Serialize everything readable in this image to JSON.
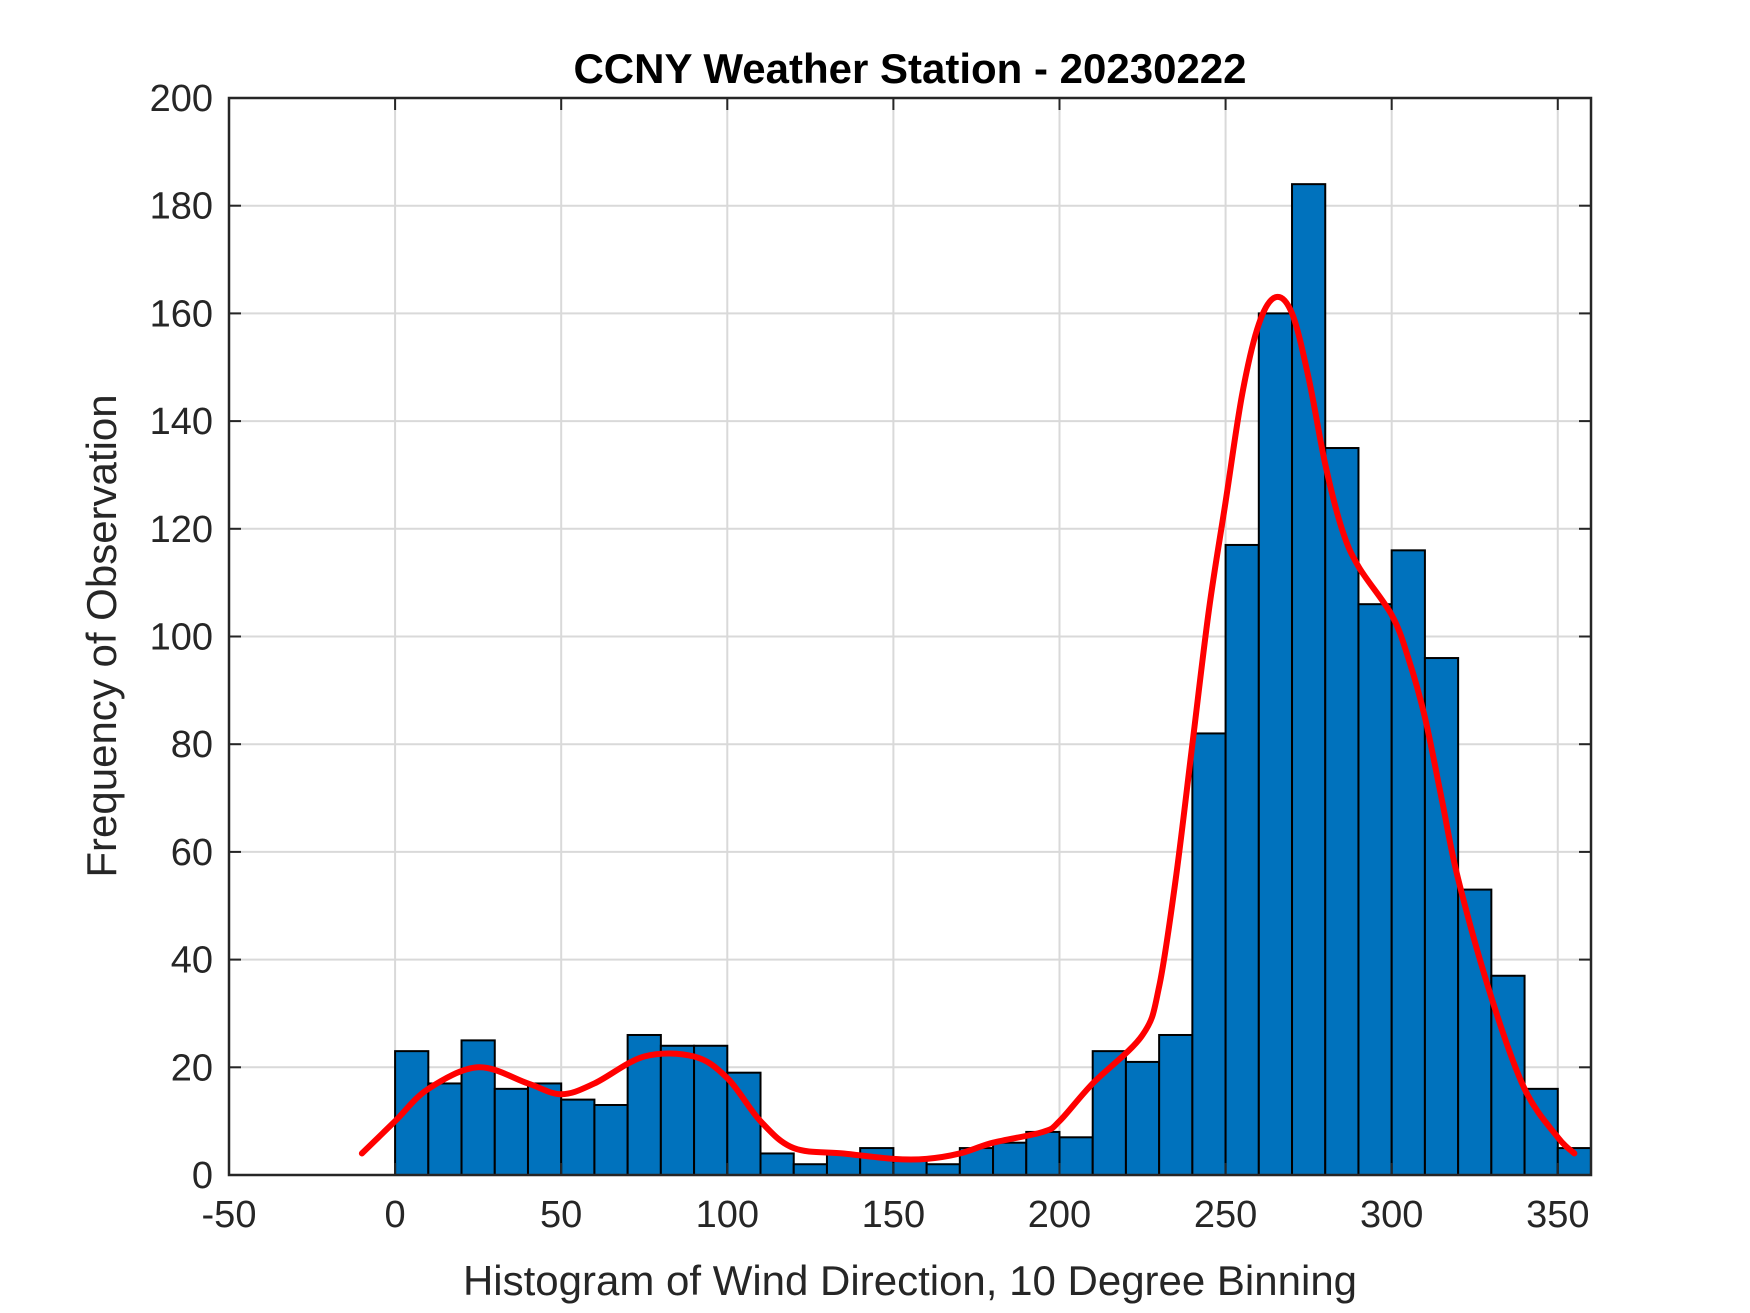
{
  "chart_data": {
    "type": "bar",
    "title": "CCNY Weather Station - 20230222",
    "xlabel": "Histogram of Wind Direction, 10 Degree Binning",
    "ylabel": "Frequency of Observation",
    "xlim": [
      -50,
      360
    ],
    "ylim": [
      0,
      200
    ],
    "xticks": [
      -50,
      0,
      50,
      100,
      150,
      200,
      250,
      300,
      350
    ],
    "xtick_labels": [
      "-50",
      "0",
      "50",
      "100",
      "150",
      "200",
      "250",
      "300",
      "350"
    ],
    "yticks": [
      0,
      20,
      40,
      60,
      80,
      100,
      120,
      140,
      160,
      180,
      200
    ],
    "ytick_labels": [
      "0",
      "20",
      "40",
      "60",
      "80",
      "100",
      "120",
      "140",
      "160",
      "180",
      "200"
    ],
    "grid": true,
    "bin_width": 10,
    "bin_edges_start": [
      0,
      10,
      20,
      30,
      40,
      50,
      60,
      70,
      80,
      90,
      100,
      110,
      120,
      130,
      140,
      150,
      160,
      170,
      180,
      190,
      200,
      210,
      220,
      230,
      240,
      250,
      260,
      270,
      280,
      290,
      300,
      310,
      320,
      330,
      340,
      350
    ],
    "values": [
      23,
      17,
      25,
      16,
      17,
      14,
      13,
      26,
      24,
      24,
      19,
      4,
      2,
      4,
      5,
      3,
      2,
      5,
      6,
      8,
      7,
      23,
      21,
      26,
      82,
      117,
      160,
      184,
      135,
      106,
      116,
      96,
      53,
      37,
      16,
      5
    ],
    "bar_color": "#0072BD",
    "series": [
      {
        "type": "line",
        "color": "#FF0000",
        "x": [
          -10,
          0,
          10,
          25,
          40,
          50,
          60,
          75,
          90,
          100,
          110,
          120,
          135,
          150,
          160,
          170,
          180,
          195,
          200,
          210,
          225,
          230,
          235,
          240,
          245,
          250,
          255,
          260,
          265,
          270,
          275,
          280,
          285,
          290,
          300,
          305,
          310,
          315,
          320,
          330,
          340,
          350,
          355
        ],
        "y": [
          4,
          10,
          16,
          20,
          17,
          15,
          17,
          22,
          22,
          18,
          10,
          5,
          4,
          3,
          3,
          4,
          6,
          8,
          10,
          17,
          26,
          35,
          55,
          80,
          105,
          125,
          145,
          158,
          163,
          160,
          148,
          132,
          120,
          113,
          104,
          96,
          85,
          70,
          55,
          33,
          16,
          7,
          4
        ]
      }
    ]
  }
}
